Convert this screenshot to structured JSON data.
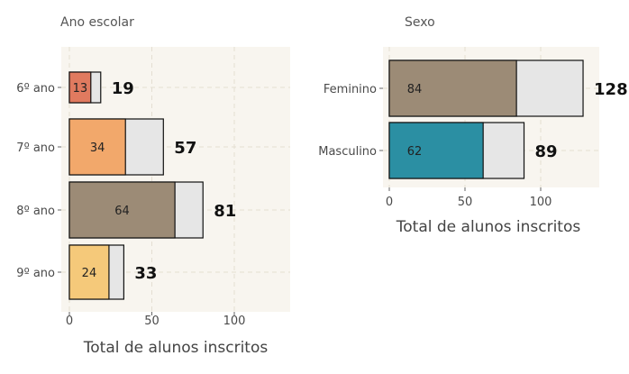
{
  "chart_data": [
    {
      "type": "bar",
      "orientation": "horizontal",
      "title": "Ano escolar",
      "xlabel": "Total de alunos inscritos",
      "categories": [
        "6º ano",
        "7º ano",
        "8º ano",
        "9º ano"
      ],
      "series": [
        {
          "values": [
            13,
            34,
            64,
            24
          ]
        },
        {
          "values": [
            19,
            57,
            81,
            33
          ]
        }
      ],
      "highlight_colors": [
        "#e07a5f",
        "#f2a86b",
        "#9c8b76",
        "#f5c97a"
      ],
      "background_bar_color": "#e6e6e6",
      "xlim": [
        0,
        135
      ],
      "xticks": [
        0,
        50,
        100
      ],
      "grid": true
    },
    {
      "type": "bar",
      "orientation": "horizontal",
      "title": "Sexo",
      "xlabel": "Total de alunos inscritos",
      "categories": [
        "Feminino",
        "Masculino"
      ],
      "series": [
        {
          "values": [
            84,
            62
          ]
        },
        {
          "values": [
            128,
            89
          ]
        }
      ],
      "highlight_colors": [
        "#9c8b76",
        "#2b8fa3"
      ],
      "background_bar_color": "#e6e6e6",
      "xlim": [
        0,
        138
      ],
      "xticks": [
        0,
        50,
        100
      ],
      "grid": true
    }
  ]
}
